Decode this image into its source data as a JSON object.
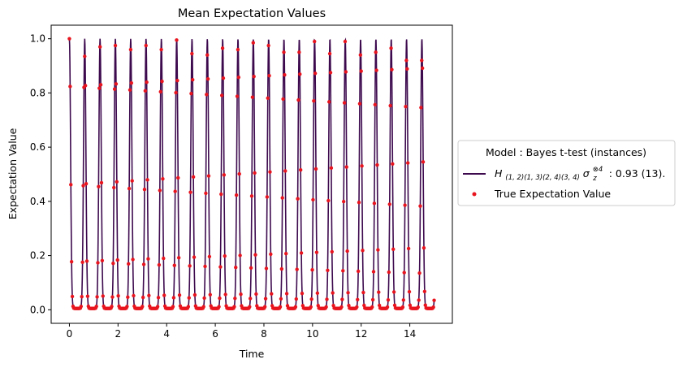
{
  "chart_data": {
    "type": "line",
    "title": "Mean Expectation Values",
    "xlabel": "Time",
    "ylabel": "Expectation Value",
    "xlim": [
      -0.75,
      15.75
    ],
    "ylim": [
      -0.05,
      1.05
    ],
    "xticks": [
      0,
      2,
      4,
      6,
      8,
      10,
      12,
      14
    ],
    "yticks": [
      0.0,
      0.2,
      0.4,
      0.6,
      0.8,
      1.0
    ],
    "xtick_labels": [
      "0",
      "2",
      "4",
      "6",
      "8",
      "10",
      "12",
      "14"
    ],
    "ytick_labels": [
      "0.0",
      "0.2",
      "0.4",
      "0.6",
      "0.8",
      "1.0"
    ],
    "grid": false,
    "legend": {
      "placement": "outside-right",
      "title": "Model : Bayes t-test (instances)",
      "entries": [
        {
          "kind": "line",
          "label_main": "H",
          "label_sub": "(1, 2)(1, 3)(2, 4)(3, 4)",
          "label_sigma": "σ",
          "label_sigma_sub": "z",
          "label_sigma_sup": "⊗4",
          "label_suffix": " : 0.93 (13)."
        },
        {
          "kind": "scatter",
          "label": "True Expectation Value"
        }
      ]
    },
    "series": [
      {
        "kind": "line",
        "color": "#3d0a4e",
        "model": "oscillation",
        "period": 0.6303,
        "peak_width": 0.0985,
        "floor": 0.005,
        "t_start": 0,
        "t_end": 15,
        "samples": 1500
      },
      {
        "kind": "scatter",
        "color": "#e8141e",
        "model": "sampled-oscillation",
        "t_start": 0,
        "t_end": 15,
        "step": 0.03,
        "peak_values": [
          1.0,
          0.935,
          0.97,
          0.975,
          0.96,
          0.975,
          0.96,
          0.995,
          0.945,
          0.94,
          0.965,
          0.96,
          0.985,
          0.975,
          0.95,
          0.95,
          0.99,
          0.945,
          0.99,
          0.94,
          0.95,
          0.965,
          0.92,
          0.92
        ]
      }
    ]
  }
}
